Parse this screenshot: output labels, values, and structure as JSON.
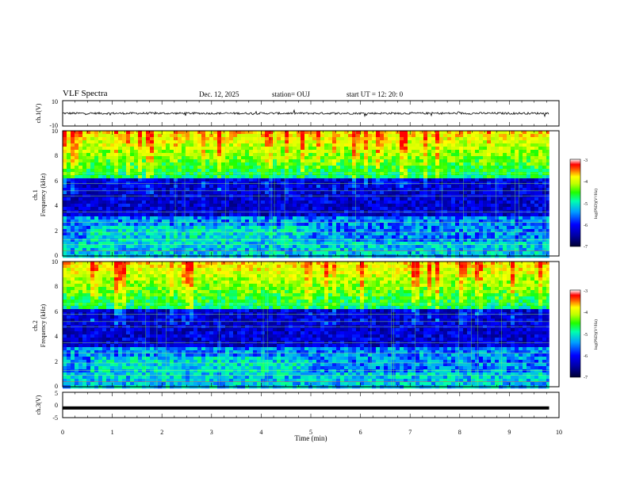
{
  "header": {
    "title": "VLF Spectra",
    "date": "Dec. 12, 2025",
    "station": "station= OUJ",
    "start": "start  UT  =   12: 20: 0"
  },
  "chart_data": [
    {
      "type": "line",
      "name": "ch1-waveform",
      "ylabel": "ch.1(V)",
      "ylim": [
        -10,
        10
      ],
      "yticks": [
        "10",
        "-10"
      ],
      "xlim": [
        0,
        10
      ],
      "trace_level": 0,
      "trace_end": 9.8
    },
    {
      "type": "heatmap",
      "name": "ch1-spectrogram",
      "ylabel_channel": "ch.1",
      "ylabel": "Frequency  (kHz)",
      "ylim": [
        0,
        10
      ],
      "yticks": [
        "0",
        "2",
        "4",
        "6",
        "8",
        "10"
      ],
      "xlim": [
        0,
        10
      ],
      "data_end": 9.8,
      "colorbar": {
        "label": "log(PSD)(V²/Hz)",
        "ticks": [
          "-3",
          "-4",
          "-5",
          "-6",
          "-7"
        ],
        "range": [
          -7,
          -3
        ]
      }
    },
    {
      "type": "heatmap",
      "name": "ch2-spectrogram",
      "ylabel_channel": "ch.2",
      "ylabel": "Frequency  (kHz)",
      "ylim": [
        0,
        10
      ],
      "yticks": [
        "0",
        "2",
        "4",
        "6",
        "8",
        "10"
      ],
      "xlim": [
        0,
        10
      ],
      "data_end": 9.8,
      "colorbar": {
        "label": "log(PSD)(V²/Hz)",
        "ticks": [
          "-3",
          "-4",
          "-5",
          "-6",
          "-7"
        ],
        "range": [
          -7,
          -3
        ]
      }
    },
    {
      "type": "line",
      "name": "ch3-waveform",
      "ylabel": "ch.3(V)",
      "ylim": [
        -5,
        5
      ],
      "yticks": [
        "5",
        "0",
        "-5"
      ],
      "xlim": [
        0,
        10
      ],
      "trace_level": -1.2,
      "trace_end": 9.8,
      "xlabel": "Time  (min)",
      "xticks": [
        "0",
        "1",
        "2",
        "3",
        "4",
        "5",
        "6",
        "7",
        "8",
        "9",
        "10"
      ]
    }
  ],
  "colors": {
    "colormap": [
      "#000033",
      "#000080",
      "#0000ff",
      "#00c0ff",
      "#00ff80",
      "#80ff00",
      "#ffff00",
      "#ff8000",
      "#ff0000",
      "#ffffff"
    ]
  }
}
